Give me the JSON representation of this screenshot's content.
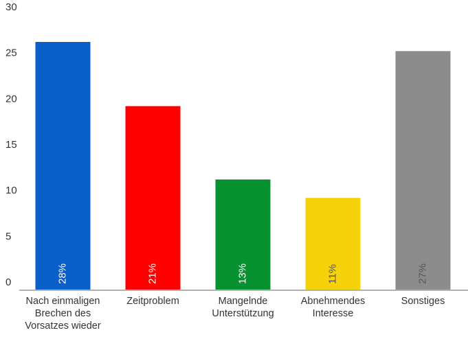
{
  "chart_data": {
    "type": "bar",
    "categories": [
      "Nach einmaligen Brechen des Vorsatzes wieder",
      "Zeitproblem",
      "Mangelnde Unterstützung",
      "Abnehmendes Interesse",
      "Sonstiges"
    ],
    "values": [
      27,
      20,
      12,
      10,
      26
    ],
    "bar_labels": [
      "28%",
      "21%",
      "13%",
      "11%",
      "27%"
    ],
    "colors": [
      "#0a5fc9",
      "#ff0000",
      "#079130",
      "#f5d20a",
      "#8c8c8c"
    ],
    "label_colors": [
      "#ffffff",
      "#ffffff",
      "#ffffff",
      "#555555",
      "#555555"
    ],
    "ylim": [
      0,
      30
    ],
    "yticks": [
      0,
      5,
      10,
      15,
      20,
      25,
      30
    ],
    "grid": false
  }
}
